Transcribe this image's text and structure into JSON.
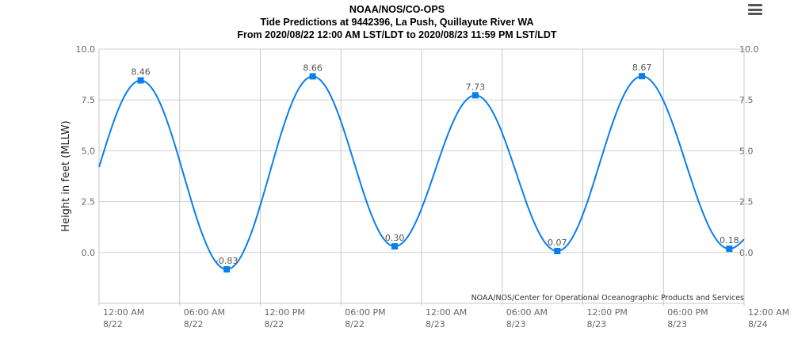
{
  "chart_data": {
    "type": "line",
    "title": "NOAA/NOS/CO-OPS",
    "subtitle": "Tide Predictions at 9442396, La Push, Quillayute River WA",
    "subtitle2": "From 2020/08/22 12:00 AM LST/LDT to 2020/08/23 11:59 PM LST/LDT",
    "ylabel": "Height in feet (MLLW)",
    "ylim": [
      -2.5,
      10.0
    ],
    "yticks": [
      "10.0",
      "7.5",
      "5.0",
      "2.5",
      "0.0"
    ],
    "ytick_values": [
      10,
      7.5,
      5,
      2.5,
      0
    ],
    "xlim_hours": [
      0,
      48
    ],
    "xticks": [
      {
        "time": "12:00 AM",
        "date": "8/22",
        "hour": 0
      },
      {
        "time": "06:00 AM",
        "date": "8/22",
        "hour": 6
      },
      {
        "time": "12:00 PM",
        "date": "8/22",
        "hour": 12
      },
      {
        "time": "06:00 PM",
        "date": "8/22",
        "hour": 18
      },
      {
        "time": "12:00 AM",
        "date": "8/23",
        "hour": 24
      },
      {
        "time": "06:00 AM",
        "date": "8/23",
        "hour": 30
      },
      {
        "time": "12:00 PM",
        "date": "8/23",
        "hour": 36
      },
      {
        "time": "06:00 PM",
        "date": "8/23",
        "hour": 42
      },
      {
        "time": "12:00 AM",
        "date": "8/24",
        "hour": 48
      }
    ],
    "start_value": 4.2,
    "end_value": 0.65,
    "hilo": [
      {
        "hour": 3.1,
        "value": 8.46,
        "label": "8.46"
      },
      {
        "hour": 9.5,
        "value": -0.83,
        "label": "-0.83"
      },
      {
        "hour": 15.9,
        "value": 8.66,
        "label": "8.66"
      },
      {
        "hour": 22.0,
        "value": 0.3,
        "label": "0.30"
      },
      {
        "hour": 28.0,
        "value": 7.73,
        "label": "7.73"
      },
      {
        "hour": 34.1,
        "value": 0.07,
        "label": "0.07"
      },
      {
        "hour": 40.4,
        "value": 8.67,
        "label": "8.67"
      },
      {
        "hour": 46.9,
        "value": 0.18,
        "label": "0.18"
      }
    ],
    "credit": "NOAA/NOS/Center for Operational Oceanographic Products and Services",
    "grid": true,
    "line_color": "#0a7eef"
  }
}
